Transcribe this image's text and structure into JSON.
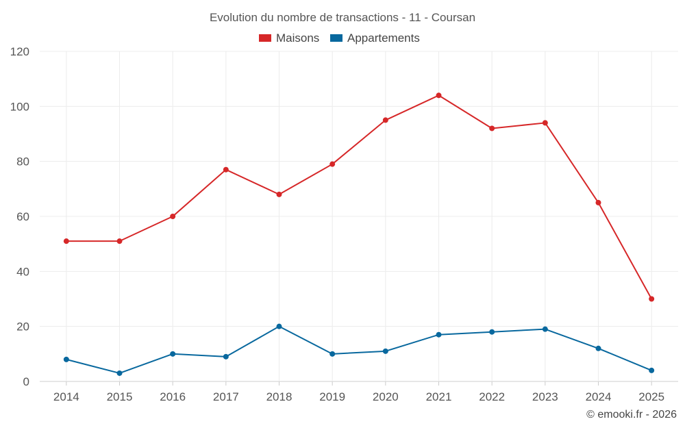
{
  "chart_data": {
    "type": "line",
    "title": "Evolution du nombre de transactions - 11 - Coursan",
    "categories": [
      "2014",
      "2015",
      "2016",
      "2017",
      "2018",
      "2019",
      "2020",
      "2021",
      "2022",
      "2023",
      "2024",
      "2025"
    ],
    "series": [
      {
        "name": "Maisons",
        "color": "#d62728",
        "values": [
          51,
          51,
          60,
          77,
          68,
          79,
          95,
          104,
          92,
          94,
          65,
          30
        ]
      },
      {
        "name": "Appartements",
        "color": "#08689e",
        "values": [
          8,
          3,
          10,
          9,
          20,
          10,
          11,
          17,
          18,
          19,
          12,
          4
        ]
      }
    ],
    "ylim": [
      0,
      120
    ],
    "yticks": [
      0,
      20,
      40,
      60,
      80,
      100,
      120
    ],
    "xlabel": "",
    "ylabel": "",
    "legend": "top-center",
    "grid": true
  },
  "credit": "© emooki.fr - 2026"
}
